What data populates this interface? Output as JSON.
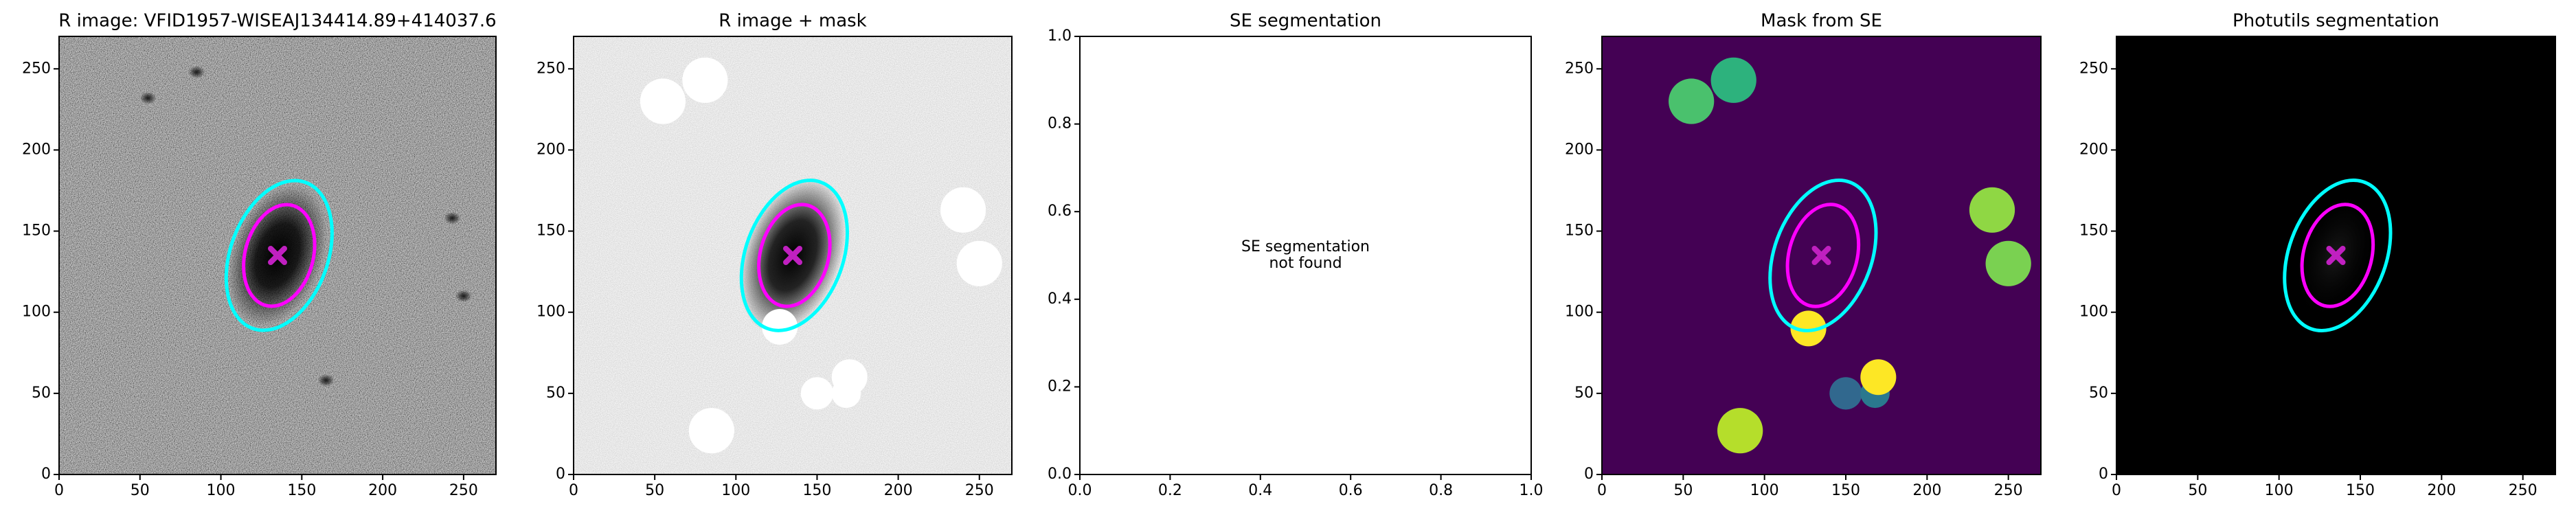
{
  "chart_data": [
    {
      "type": "image",
      "title": "R image: VFID1957-WISEAJ134414.89+414037.6",
      "xlim": [
        0,
        270
      ],
      "ylim": [
        0,
        270
      ],
      "xticks": [
        0,
        50,
        100,
        150,
        200,
        250
      ],
      "yticks": [
        0,
        50,
        100,
        150,
        200,
        250
      ],
      "ellipses": [
        {
          "x": 136,
          "y": 135,
          "width": 96,
          "height": 60,
          "angle": 70,
          "color": "#00ffff"
        },
        {
          "x": 136,
          "y": 135,
          "width": 64,
          "height": 42,
          "angle": 75,
          "color": "#ff00ff"
        }
      ],
      "markers": [
        {
          "x": 135,
          "y": 135,
          "color": "#c020c0"
        }
      ]
    },
    {
      "type": "image",
      "title": "R image + mask",
      "xlim": [
        0,
        270
      ],
      "ylim": [
        0,
        270
      ],
      "xticks": [
        0,
        50,
        100,
        150,
        200,
        250
      ],
      "yticks": [
        0,
        50,
        100,
        150,
        200,
        250
      ],
      "circles": [
        {
          "x": 55,
          "y": 230,
          "r": 14,
          "color": "#ffffff"
        },
        {
          "x": 81,
          "y": 243,
          "r": 14,
          "color": "#ffffff"
        },
        {
          "x": 240,
          "y": 163,
          "r": 14,
          "color": "#ffffff"
        },
        {
          "x": 250,
          "y": 130,
          "r": 14,
          "color": "#ffffff"
        },
        {
          "x": 127,
          "y": 91,
          "r": 11,
          "color": "#ffffff"
        },
        {
          "x": 150,
          "y": 50,
          "r": 10,
          "color": "#ffffff"
        },
        {
          "x": 170,
          "y": 60,
          "r": 11,
          "color": "#ffffff"
        },
        {
          "x": 168,
          "y": 50,
          "r": 9,
          "color": "#ffffff"
        },
        {
          "x": 85,
          "y": 27,
          "r": 14,
          "color": "#ffffff"
        }
      ],
      "ellipses": [
        {
          "x": 136,
          "y": 135,
          "width": 96,
          "height": 60,
          "angle": 70,
          "color": "#00ffff"
        },
        {
          "x": 136,
          "y": 135,
          "width": 64,
          "height": 42,
          "angle": 75,
          "color": "#ff00ff"
        }
      ],
      "markers": [
        {
          "x": 135,
          "y": 135,
          "color": "#c020c0"
        }
      ]
    },
    {
      "type": "empty",
      "title": "SE segmentation",
      "annotation": "SE segmentation\nnot found",
      "xlim": [
        0,
        1
      ],
      "ylim": [
        0,
        1
      ],
      "xticks": [
        {
          "value": 0,
          "label": "0.0"
        },
        {
          "value": 0.2,
          "label": "0.2"
        },
        {
          "value": 0.4,
          "label": "0.4"
        },
        {
          "value": 0.6,
          "label": "0.6"
        },
        {
          "value": 0.8,
          "label": "0.8"
        },
        {
          "value": 1,
          "label": "1.0"
        }
      ],
      "yticks": [
        {
          "value": 0,
          "label": "0.0"
        },
        {
          "value": 0.2,
          "label": "0.2"
        },
        {
          "value": 0.4,
          "label": "0.4"
        },
        {
          "value": 0.6,
          "label": "0.6"
        },
        {
          "value": 0.8,
          "label": "0.8"
        },
        {
          "value": 1,
          "label": "1.0"
        }
      ]
    },
    {
      "type": "image",
      "title": "Mask from SE",
      "xlim": [
        0,
        270
      ],
      "ylim": [
        0,
        270
      ],
      "xticks": [
        0,
        50,
        100,
        150,
        200,
        250
      ],
      "yticks": [
        0,
        50,
        100,
        150,
        200,
        250
      ],
      "circles": [
        {
          "x": 55,
          "y": 230,
          "r": 14,
          "color": "#4ac16d"
        },
        {
          "x": 81,
          "y": 243,
          "r": 14,
          "color": "#2db27d"
        },
        {
          "x": 240,
          "y": 163,
          "r": 14,
          "color": "#8fd744"
        },
        {
          "x": 250,
          "y": 130,
          "r": 14,
          "color": "#7ad151"
        },
        {
          "x": 127,
          "y": 90,
          "r": 11,
          "color": "#fde725"
        },
        {
          "x": 150,
          "y": 50,
          "r": 10,
          "color": "#31688e"
        },
        {
          "x": 168,
          "y": 50,
          "r": 9,
          "color": "#2a788e"
        },
        {
          "x": 170,
          "y": 60,
          "r": 11,
          "color": "#fde725"
        },
        {
          "x": 85,
          "y": 27,
          "r": 14,
          "color": "#b5de2b"
        }
      ],
      "ellipses": [
        {
          "x": 136,
          "y": 135,
          "width": 96,
          "height": 60,
          "angle": 70,
          "color": "#00ffff"
        },
        {
          "x": 136,
          "y": 135,
          "width": 64,
          "height": 42,
          "angle": 75,
          "color": "#ff00ff"
        }
      ],
      "markers": [
        {
          "x": 135,
          "y": 135,
          "color": "#c020c0"
        }
      ]
    },
    {
      "type": "image",
      "title": "Photutils segmentation",
      "xlim": [
        0,
        270
      ],
      "ylim": [
        0,
        270
      ],
      "xticks": [
        0,
        50,
        100,
        150,
        200,
        250
      ],
      "yticks": [
        0,
        50,
        100,
        150,
        200,
        250
      ],
      "ellipses": [
        {
          "x": 136,
          "y": 135,
          "width": 96,
          "height": 60,
          "angle": 70,
          "color": "#00ffff"
        },
        {
          "x": 136,
          "y": 135,
          "width": 64,
          "height": 42,
          "angle": 75,
          "color": "#ff00ff"
        }
      ],
      "markers": [
        {
          "x": 135,
          "y": 135,
          "color": "#c020c0"
        }
      ]
    }
  ]
}
